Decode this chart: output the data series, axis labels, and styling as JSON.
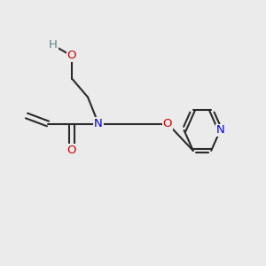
{
  "background_color": "#ebebeb",
  "bond_color": "#2a2a2a",
  "atom_colors": {
    "O": "#cc0000",
    "N": "#0000dd",
    "H": "#5a8888",
    "C": "#2a2a2a"
  },
  "figsize": [
    3.0,
    3.0
  ],
  "dpi": 100
}
